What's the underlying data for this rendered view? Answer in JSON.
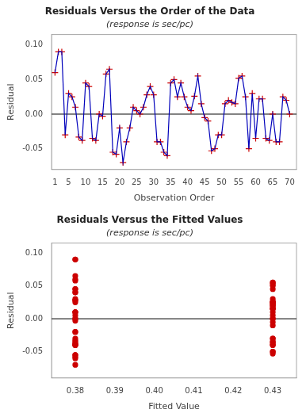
{
  "chart_data": [
    {
      "type": "line",
      "title": "Residuals Versus the Order of the Data",
      "subtitle": "(response is sec/pc)",
      "x_label": "Observation Order",
      "y_label": "Residual",
      "x": [
        1,
        2,
        3,
        4,
        5,
        6,
        7,
        8,
        9,
        10,
        11,
        12,
        13,
        14,
        15,
        16,
        17,
        18,
        19,
        20,
        21,
        22,
        23,
        24,
        25,
        26,
        27,
        28,
        29,
        30,
        31,
        32,
        33,
        34,
        35,
        36,
        37,
        38,
        39,
        40,
        41,
        42,
        43,
        44,
        45,
        46,
        47,
        48,
        49,
        50,
        51,
        52,
        53,
        54,
        55,
        56,
        57,
        58,
        59,
        60,
        61,
        62,
        63,
        64,
        65,
        66,
        67,
        68,
        69,
        70
      ],
      "series": [
        {
          "color": "#0000bb",
          "marker": "none",
          "line_style": "solid",
          "values": [
            0.06,
            0.09,
            0.09,
            -0.03,
            0.03,
            0.025,
            0.01,
            -0.033,
            -0.038,
            0.045,
            0.04,
            -0.035,
            -0.038,
            0.0,
            -0.003,
            0.058,
            0.065,
            -0.055,
            -0.058,
            -0.02,
            -0.07,
            -0.04,
            -0.02,
            0.01,
            0.005,
            0.0,
            0.01,
            0.028,
            0.04,
            0.028,
            -0.04,
            -0.04,
            -0.055,
            -0.06,
            0.045,
            0.05,
            0.025,
            0.045,
            0.025,
            0.01,
            0.005,
            0.026,
            0.055,
            0.015,
            -0.005,
            -0.01,
            -0.053,
            -0.05,
            -0.03,
            -0.03,
            0.015,
            0.02,
            0.017,
            0.015,
            0.052,
            0.055,
            0.025,
            -0.05,
            0.03,
            -0.035,
            0.022,
            0.022,
            -0.035,
            -0.038,
            0.0,
            -0.04,
            -0.04,
            0.025,
            0.02,
            0.0
          ]
        },
        {
          "color": "#cc0000",
          "marker": "plus",
          "line_style": "none",
          "values": [
            0.06,
            0.09,
            0.09,
            -0.03,
            0.03,
            0.025,
            0.01,
            -0.033,
            -0.038,
            0.045,
            0.04,
            -0.035,
            -0.038,
            0.0,
            -0.003,
            0.058,
            0.065,
            -0.055,
            -0.058,
            -0.02,
            -0.07,
            -0.04,
            -0.02,
            0.01,
            0.005,
            0.0,
            0.01,
            0.028,
            0.04,
            0.028,
            -0.04,
            -0.04,
            -0.055,
            -0.06,
            0.045,
            0.05,
            0.025,
            0.045,
            0.025,
            0.01,
            0.005,
            0.026,
            0.055,
            0.015,
            -0.005,
            -0.01,
            -0.053,
            -0.05,
            -0.03,
            -0.03,
            0.015,
            0.02,
            0.017,
            0.015,
            0.052,
            0.055,
            0.025,
            -0.05,
            0.03,
            -0.035,
            0.022,
            0.022,
            -0.035,
            -0.038,
            0.0,
            -0.04,
            -0.04,
            0.025,
            0.02,
            0.0
          ]
        }
      ],
      "hlines": [
        {
          "y": 0,
          "color": "#000000"
        }
      ],
      "xlim": [
        0,
        72
      ],
      "xticks": [
        1,
        5,
        10,
        15,
        20,
        25,
        30,
        35,
        40,
        45,
        50,
        55,
        60,
        65,
        70
      ],
      "ylim": [
        -0.08,
        0.115
      ],
      "yticks": [
        -0.05,
        {
          "value": 0,
          "label": "0.00"
        },
        0.05,
        {
          "value": 0.1,
          "label": "0.10"
        }
      ],
      "grid": false
    },
    {
      "type": "scatter",
      "title": "Residuals Versus the Fitted Values",
      "subtitle": "(response is sec/pc)",
      "x_label": "Fitted Value",
      "y_label": "Residual",
      "x": [
        0.38,
        0.38,
        0.38,
        0.38,
        0.38,
        0.38,
        0.38,
        0.38,
        0.38,
        0.38,
        0.38,
        0.38,
        0.38,
        0.38,
        0.38,
        0.38,
        0.38,
        0.38,
        0.38,
        0.38,
        0.38,
        0.38,
        0.38,
        0.38,
        0.38,
        0.38,
        0.38,
        0.38,
        0.38,
        0.38,
        0.38,
        0.38,
        0.38,
        0.38,
        0.38,
        0.43,
        0.43,
        0.43,
        0.43,
        0.43,
        0.43,
        0.43,
        0.43,
        0.43,
        0.43,
        0.43,
        0.43,
        0.43,
        0.43,
        0.43,
        0.43,
        0.43,
        0.43,
        0.43,
        0.43,
        0.43,
        0.43,
        0.43,
        0.43,
        0.43,
        0.43,
        0.43,
        0.43,
        0.43,
        0.43,
        0.43,
        0.43,
        0.43,
        0.43,
        0.43
      ],
      "series": [
        {
          "color": "#cc0000",
          "marker": "circle",
          "values": [
            0.06,
            0.09,
            0.09,
            -0.03,
            0.03,
            0.025,
            0.01,
            -0.033,
            -0.038,
            0.045,
            0.04,
            -0.035,
            -0.038,
            0.0,
            -0.003,
            0.058,
            0.065,
            -0.055,
            -0.058,
            -0.02,
            -0.07,
            -0.04,
            -0.02,
            0.01,
            0.005,
            0.0,
            0.01,
            0.028,
            0.04,
            0.028,
            -0.04,
            -0.04,
            -0.055,
            -0.06,
            0.045,
            0.05,
            0.025,
            0.045,
            0.025,
            0.01,
            0.005,
            0.026,
            0.055,
            0.015,
            -0.005,
            -0.01,
            -0.053,
            -0.05,
            -0.03,
            -0.03,
            0.015,
            0.02,
            0.017,
            0.015,
            0.052,
            0.055,
            0.025,
            -0.05,
            0.03,
            -0.035,
            0.022,
            0.022,
            -0.035,
            -0.038,
            0.0,
            -0.04,
            -0.04,
            0.025,
            0.02,
            0.0
          ]
        }
      ],
      "hlines": [
        {
          "y": 0,
          "color": "#000000"
        }
      ],
      "xlim": [
        0.374,
        0.436
      ],
      "xticks": [
        0.38,
        0.39,
        {
          "value": 0.4,
          "label": "0.40"
        },
        0.41,
        0.42,
        0.43
      ],
      "ylim": [
        -0.09,
        0.115
      ],
      "yticks": [
        -0.05,
        {
          "value": 0,
          "label": "0.00"
        },
        0.05,
        {
          "value": 0.1,
          "label": "0.10"
        }
      ],
      "grid": false
    }
  ]
}
